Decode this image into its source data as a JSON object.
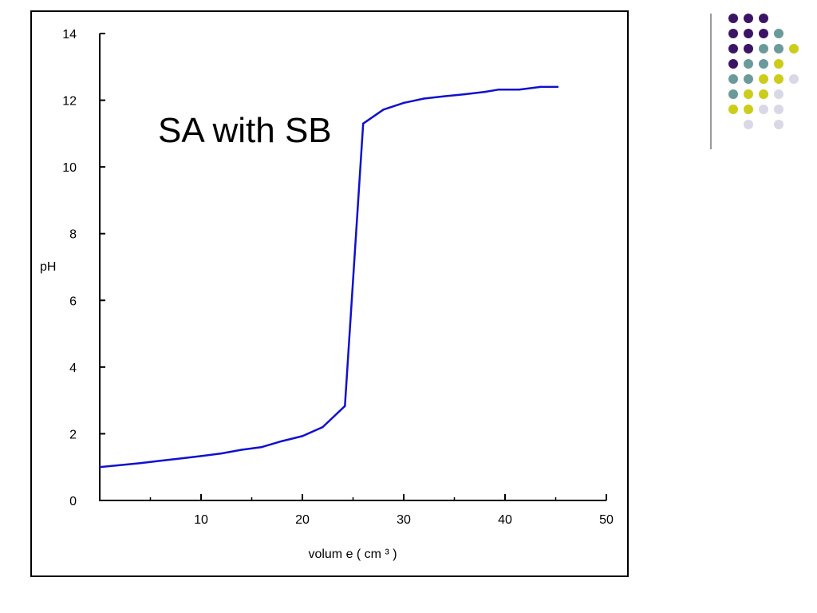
{
  "colors": {
    "curve": "#1010d0",
    "frame": "#000000",
    "dot_purple": "#3b1466",
    "dot_teal": "#6a9a9a",
    "dot_yellow": "#cccc1a",
    "dot_lavender": "#d8d8e6"
  },
  "decoration": {
    "dot_grid_colors": [
      [
        "dot_purple",
        "dot_purple",
        "dot_purple",
        null,
        null
      ],
      [
        "dot_purple",
        "dot_purple",
        "dot_purple",
        "dot_teal",
        null
      ],
      [
        "dot_purple",
        "dot_purple",
        "dot_teal",
        "dot_teal",
        "dot_yellow"
      ],
      [
        "dot_purple",
        "dot_teal",
        "dot_teal",
        "dot_yellow",
        null
      ],
      [
        "dot_teal",
        "dot_teal",
        "dot_yellow",
        "dot_yellow",
        "dot_lavender"
      ],
      [
        "dot_teal",
        "dot_yellow",
        "dot_yellow",
        "dot_lavender",
        null
      ],
      [
        "dot_yellow",
        "dot_yellow",
        "dot_lavender",
        "dot_lavender",
        null
      ],
      [
        null,
        "dot_lavender",
        null,
        "dot_lavender",
        null
      ]
    ]
  },
  "chart_data": {
    "type": "line",
    "title": "SA with SB",
    "xlabel": "volum e ( cm ³ )",
    "ylabel": "pH",
    "xlim": [
      0,
      50
    ],
    "ylim": [
      0,
      14
    ],
    "x_ticks": [
      10,
      20,
      30,
      40,
      50
    ],
    "x_minor_ticks": [
      5,
      15,
      25,
      35,
      45
    ],
    "y_ticks": [
      0,
      2,
      4,
      6,
      8,
      10,
      12,
      14
    ],
    "grid": false,
    "legend": "none",
    "series": [
      {
        "x": [
          0,
          2,
          4,
          6,
          8,
          10,
          12,
          14,
          16,
          18,
          20,
          22,
          24.2,
          26,
          28,
          30,
          32,
          34,
          36,
          38,
          39.4,
          41.4,
          43.5,
          45.2
        ],
        "y": [
          1.0,
          1.06,
          1.12,
          1.19,
          1.26,
          1.33,
          1.41,
          1.52,
          1.6,
          1.78,
          1.93,
          2.2,
          2.83,
          11.3,
          11.72,
          11.92,
          12.05,
          12.12,
          12.18,
          12.25,
          12.32,
          12.32,
          12.4,
          12.4
        ]
      }
    ]
  }
}
